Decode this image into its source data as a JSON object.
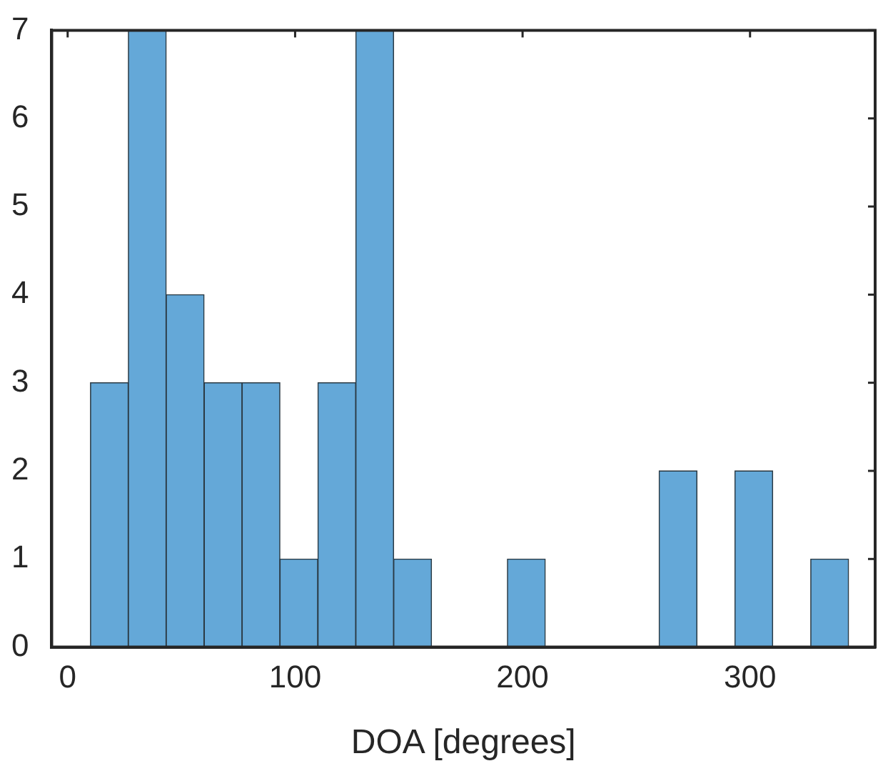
{
  "chart_data": {
    "type": "histogram",
    "xlabel": "DOA [degrees]",
    "bins": [
      10,
      26.7,
      43.3,
      60,
      76.7,
      93.3,
      110,
      126.7,
      143.3,
      160,
      176.7,
      193.3,
      210,
      226.7,
      243.3,
      260,
      276.7,
      293.3,
      310,
      326.7,
      343.3
    ],
    "values": [
      3,
      7,
      4,
      3,
      3,
      1,
      3,
      7,
      1,
      0,
      0,
      1,
      0,
      0,
      0,
      2,
      0,
      2,
      0,
      1
    ],
    "color": "#64a8d8",
    "xlim": [
      -7,
      355
    ],
    "xticks": [
      0,
      100,
      200,
      300
    ],
    "ylim": [
      0,
      7
    ],
    "yticks": [
      0,
      1,
      2,
      3,
      4,
      5,
      6,
      7
    ],
    "grid": false,
    "legend": false
  }
}
